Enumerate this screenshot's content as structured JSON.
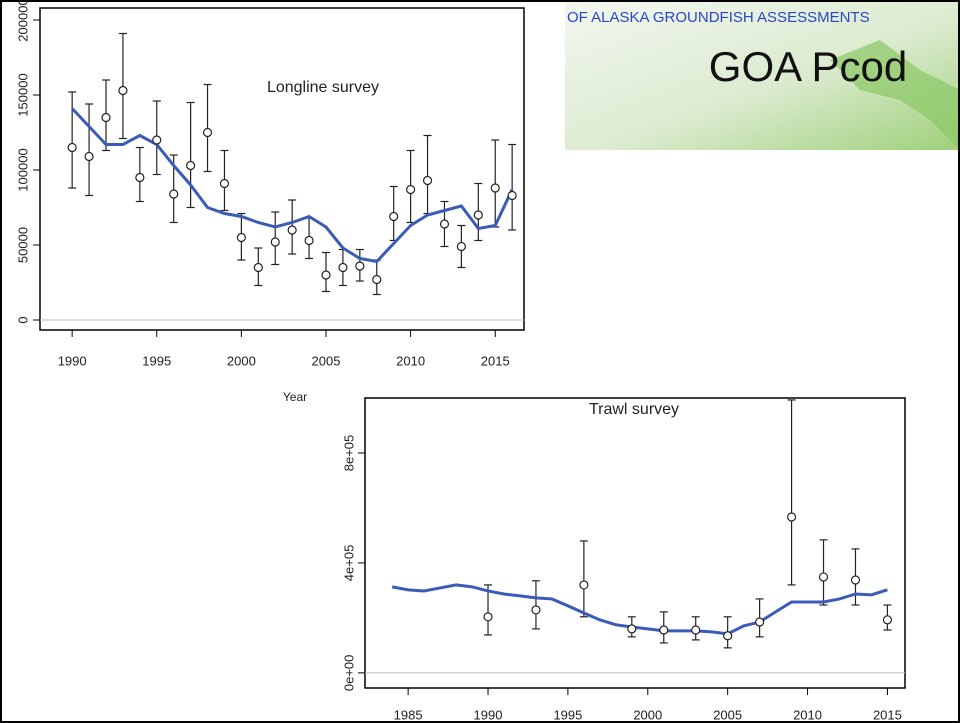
{
  "slide": {
    "header": "OF ALASKA GROUNDFISH ASSESSMENTS",
    "title": "GOA Pcod"
  },
  "chart_data": [
    {
      "type": "line",
      "title": "Longline survey",
      "x_label": "Year",
      "xlim": [
        1988.1,
        2016.7
      ],
      "xticks": [
        1990,
        1995,
        2000,
        2005,
        2010,
        2015
      ],
      "ylim": [
        -6667,
        208000
      ],
      "yticks": [
        0,
        50000,
        100000,
        150000,
        200000
      ],
      "hline": 0,
      "x": [
        1990,
        1991,
        1992,
        1993,
        1994,
        1995,
        1996,
        1997,
        1998,
        1999,
        2000,
        2001,
        2002,
        2003,
        2004,
        2005,
        2006,
        2007,
        2008,
        2009,
        2010,
        2011,
        2012,
        2013,
        2014,
        2015,
        2016
      ],
      "fit": {
        "color": "#3a5bb8",
        "values": [
          141000,
          129000,
          117000,
          117000,
          123000,
          117000,
          103000,
          90000,
          75000,
          71000,
          69000,
          65000,
          62000,
          65000,
          69000,
          62000,
          48000,
          41000,
          39000,
          51000,
          63000,
          70000,
          73000,
          76000,
          61000,
          63000,
          87000
        ]
      },
      "obs": {
        "x": [
          1990,
          1991,
          1992,
          1993,
          1994,
          1995,
          1996,
          1997,
          1998,
          1999,
          2000,
          2001,
          2002,
          2003,
          2004,
          2005,
          2006,
          2007,
          2008,
          2009,
          2010,
          2011,
          2012,
          2013,
          2014,
          2015,
          2016
        ],
        "values": [
          115000,
          109000,
          135000,
          153000,
          95000,
          120000,
          84000,
          103000,
          125000,
          91000,
          55000,
          35000,
          52000,
          60000,
          53000,
          30000,
          35000,
          36000,
          27000,
          69000,
          87000,
          93000,
          64000,
          49000,
          70000,
          88000,
          83000
        ],
        "upper": [
          152000,
          144000,
          160000,
          191000,
          115000,
          146000,
          110000,
          145000,
          157000,
          113000,
          71000,
          48000,
          72000,
          80000,
          68000,
          45000,
          47000,
          47000,
          40000,
          89000,
          113000,
          123000,
          79000,
          63000,
          91000,
          120000,
          117000
        ],
        "lower": [
          88000,
          83000,
          113000,
          121000,
          79000,
          97000,
          65000,
          75000,
          99000,
          73000,
          40000,
          23000,
          37000,
          44000,
          41000,
          19000,
          23000,
          26000,
          17000,
          53000,
          65000,
          71000,
          49000,
          35000,
          53000,
          62000,
          60000
        ]
      }
    },
    {
      "type": "line",
      "title": "Trawl survey",
      "xlim": [
        1982.3,
        2016.1
      ],
      "xticks": [
        1985,
        1990,
        1995,
        2000,
        2005,
        2010,
        2015
      ],
      "ylim": [
        -55000,
        1000000
      ],
      "yticks": [
        {
          "value": 0,
          "label": "0e+00"
        },
        {
          "value": 400000,
          "label": "4e+05"
        },
        {
          "value": 800000,
          "label": "8e+05"
        }
      ],
      "hline": 0,
      "x": [
        1984,
        1985,
        1986,
        1987,
        1988,
        1989,
        1990,
        1991,
        1992,
        1993,
        1994,
        1995,
        1996,
        1997,
        1998,
        1999,
        2000,
        2001,
        2002,
        2003,
        2004,
        2005,
        2006,
        2007,
        2008,
        2009,
        2010,
        2011,
        2012,
        2013,
        2014,
        2015
      ],
      "fit": {
        "color": "#3a5bb8",
        "values": [
          313000,
          302000,
          298000,
          309000,
          320000,
          313000,
          298000,
          287000,
          280000,
          273000,
          269000,
          244000,
          218000,
          193000,
          175000,
          167000,
          160000,
          153000,
          153000,
          153000,
          149000,
          142000,
          171000,
          185000,
          222000,
          258000,
          258000,
          258000,
          269000,
          287000,
          284000,
          302000
        ]
      },
      "obs": {
        "x": [
          1990,
          1993,
          1996,
          1999,
          2001,
          2003,
          2005,
          2007,
          2009,
          2011,
          2013,
          2015
        ],
        "values": [
          204000,
          229000,
          320000,
          160000,
          156000,
          156000,
          135000,
          185000,
          567000,
          349000,
          338000,
          193000
        ],
        "upper": [
          320000,
          335000,
          480000,
          204000,
          222000,
          204000,
          204000,
          269000,
          993000,
          484000,
          451000,
          247000
        ],
        "lower": [
          138000,
          160000,
          204000,
          131000,
          109000,
          120000,
          91000,
          131000,
          320000,
          247000,
          247000,
          156000
        ]
      }
    }
  ]
}
